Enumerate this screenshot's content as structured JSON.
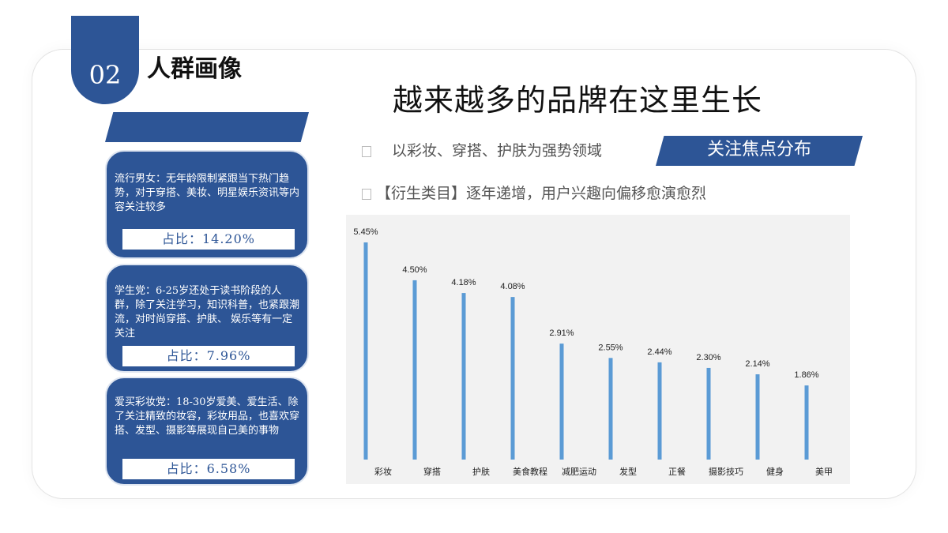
{
  "section": {
    "number": "02",
    "title": "人群画像"
  },
  "headline": "越来越多的品牌在这里生长",
  "bullets": [
    "以彩妆、穿搭、护肤为强势领域",
    "【衍生类目】逐年递增，用户兴趣向偏移愈演愈烈"
  ],
  "focus_label": "关注焦点分布",
  "cards": [
    {
      "text": "流行男女：无年龄限制紧跟当下热门趋势，对于穿搭、美妆、明星娱乐资讯等内容关注较多",
      "share": "占比：14.20%"
    },
    {
      "text": "学生党：6-25岁还处于读书阶段的人群，除了关注学习，知识科普，也紧跟潮流，对时尚穿搭、护肤、 娱乐等有一定关注",
      "share": "占比：7.96%"
    },
    {
      "text": "爱买彩妆党：18-30岁爱美、爱生活、除了关注精致的妆容，彩妆用品，也喜欢穿搭、发型、摄影等展现自己美的事物",
      "share": "占比：6.58%"
    }
  ],
  "colors": {
    "primary": "#2d5596",
    "bar": "#5b9bd5",
    "chart_bg": "#f2f2f2"
  },
  "chart_data": {
    "type": "bar",
    "categories": [
      "彩妆",
      "穿搭",
      "护肤",
      "美食教程",
      "减肥运动",
      "发型",
      "正餐",
      "摄影技巧",
      "健身",
      "美甲"
    ],
    "values": [
      5.45,
      4.5,
      4.18,
      4.08,
      2.91,
      2.55,
      2.44,
      2.3,
      2.14,
      1.86
    ],
    "labels": [
      "5.45%",
      "4.50%",
      "4.18%",
      "4.08%",
      "2.91%",
      "2.55%",
      "2.44%",
      "2.30%",
      "2.14%",
      "1.86%"
    ],
    "unit": "%",
    "ylim": [
      0,
      5.6
    ],
    "grid": false,
    "title": "",
    "xlabel": "",
    "ylabel": ""
  }
}
